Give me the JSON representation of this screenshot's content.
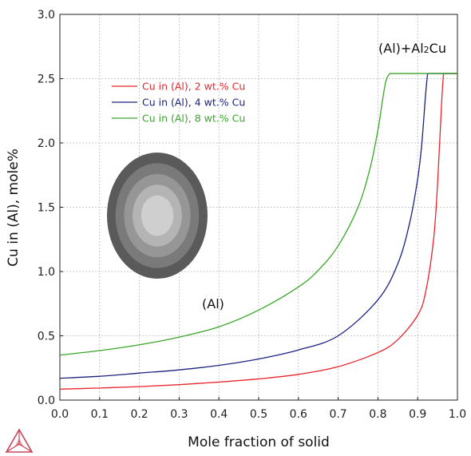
{
  "chart_data": {
    "type": "line",
    "xlabel": "Mole fraction of solid",
    "ylabel": "Cu in (Al), mole%",
    "xlim": [
      0.0,
      1.0
    ],
    "ylim": [
      0.0,
      3.0
    ],
    "xticks": [
      "0.0",
      "0.1",
      "0.2",
      "0.3",
      "0.4",
      "0.5",
      "0.6",
      "0.7",
      "0.8",
      "0.9",
      "1.0"
    ],
    "yticks": [
      "0.0",
      "0.5",
      "1.0",
      "1.5",
      "2.0",
      "2.5",
      "3.0"
    ],
    "grid": true,
    "legend_position": "top-left",
    "series": [
      {
        "name": "Cu in (Al), 2 wt.% Cu",
        "color": "#e8242c",
        "x": [
          0.0,
          0.1,
          0.2,
          0.3,
          0.4,
          0.5,
          0.6,
          0.7,
          0.8,
          0.85,
          0.9,
          0.92,
          0.94,
          0.95,
          0.96,
          0.965,
          1.0
        ],
        "y": [
          0.085,
          0.094,
          0.105,
          0.12,
          0.14,
          0.165,
          0.2,
          0.26,
          0.37,
          0.47,
          0.66,
          0.84,
          1.25,
          1.68,
          2.3,
          2.54,
          2.54
        ]
      },
      {
        "name": "Cu in (Al), 4 wt.% Cu",
        "color": "#1a237e",
        "x": [
          0.0,
          0.1,
          0.2,
          0.3,
          0.4,
          0.5,
          0.6,
          0.7,
          0.8,
          0.85,
          0.88,
          0.9,
          0.91,
          0.92,
          0.925,
          1.0
        ],
        "y": [
          0.17,
          0.185,
          0.21,
          0.235,
          0.27,
          0.32,
          0.39,
          0.5,
          0.78,
          1.06,
          1.38,
          1.72,
          1.98,
          2.38,
          2.54,
          2.54
        ]
      },
      {
        "name": "Cu in (Al), 8 wt.% Cu",
        "color": "#3aa52a",
        "x": [
          0.0,
          0.1,
          0.2,
          0.3,
          0.4,
          0.5,
          0.6,
          0.65,
          0.7,
          0.75,
          0.78,
          0.8,
          0.81,
          0.82,
          0.83,
          1.0
        ],
        "y": [
          0.35,
          0.385,
          0.43,
          0.49,
          0.57,
          0.7,
          0.88,
          1.01,
          1.2,
          1.5,
          1.8,
          2.1,
          2.3,
          2.48,
          2.54,
          2.54
        ]
      }
    ],
    "annotations": [
      "(Al)+Al2Cu",
      "(Al)"
    ]
  },
  "annotation_parts": {
    "prefix": "(Al)+Al",
    "subscript": "2",
    "suffix": "Cu"
  },
  "annotation_region": "(Al)",
  "background": "#ffffff",
  "grid_color": "#c8c8c8",
  "icons": {
    "grain_diagram": "concentric-grain-icon",
    "logo": "thermo-calc-triangle-icon"
  },
  "grain_colors": [
    "#5a5a5a",
    "#7a7a7a",
    "#969696",
    "#b4b4b4",
    "#cfcfcf"
  ],
  "logo_color": "#c8465a"
}
